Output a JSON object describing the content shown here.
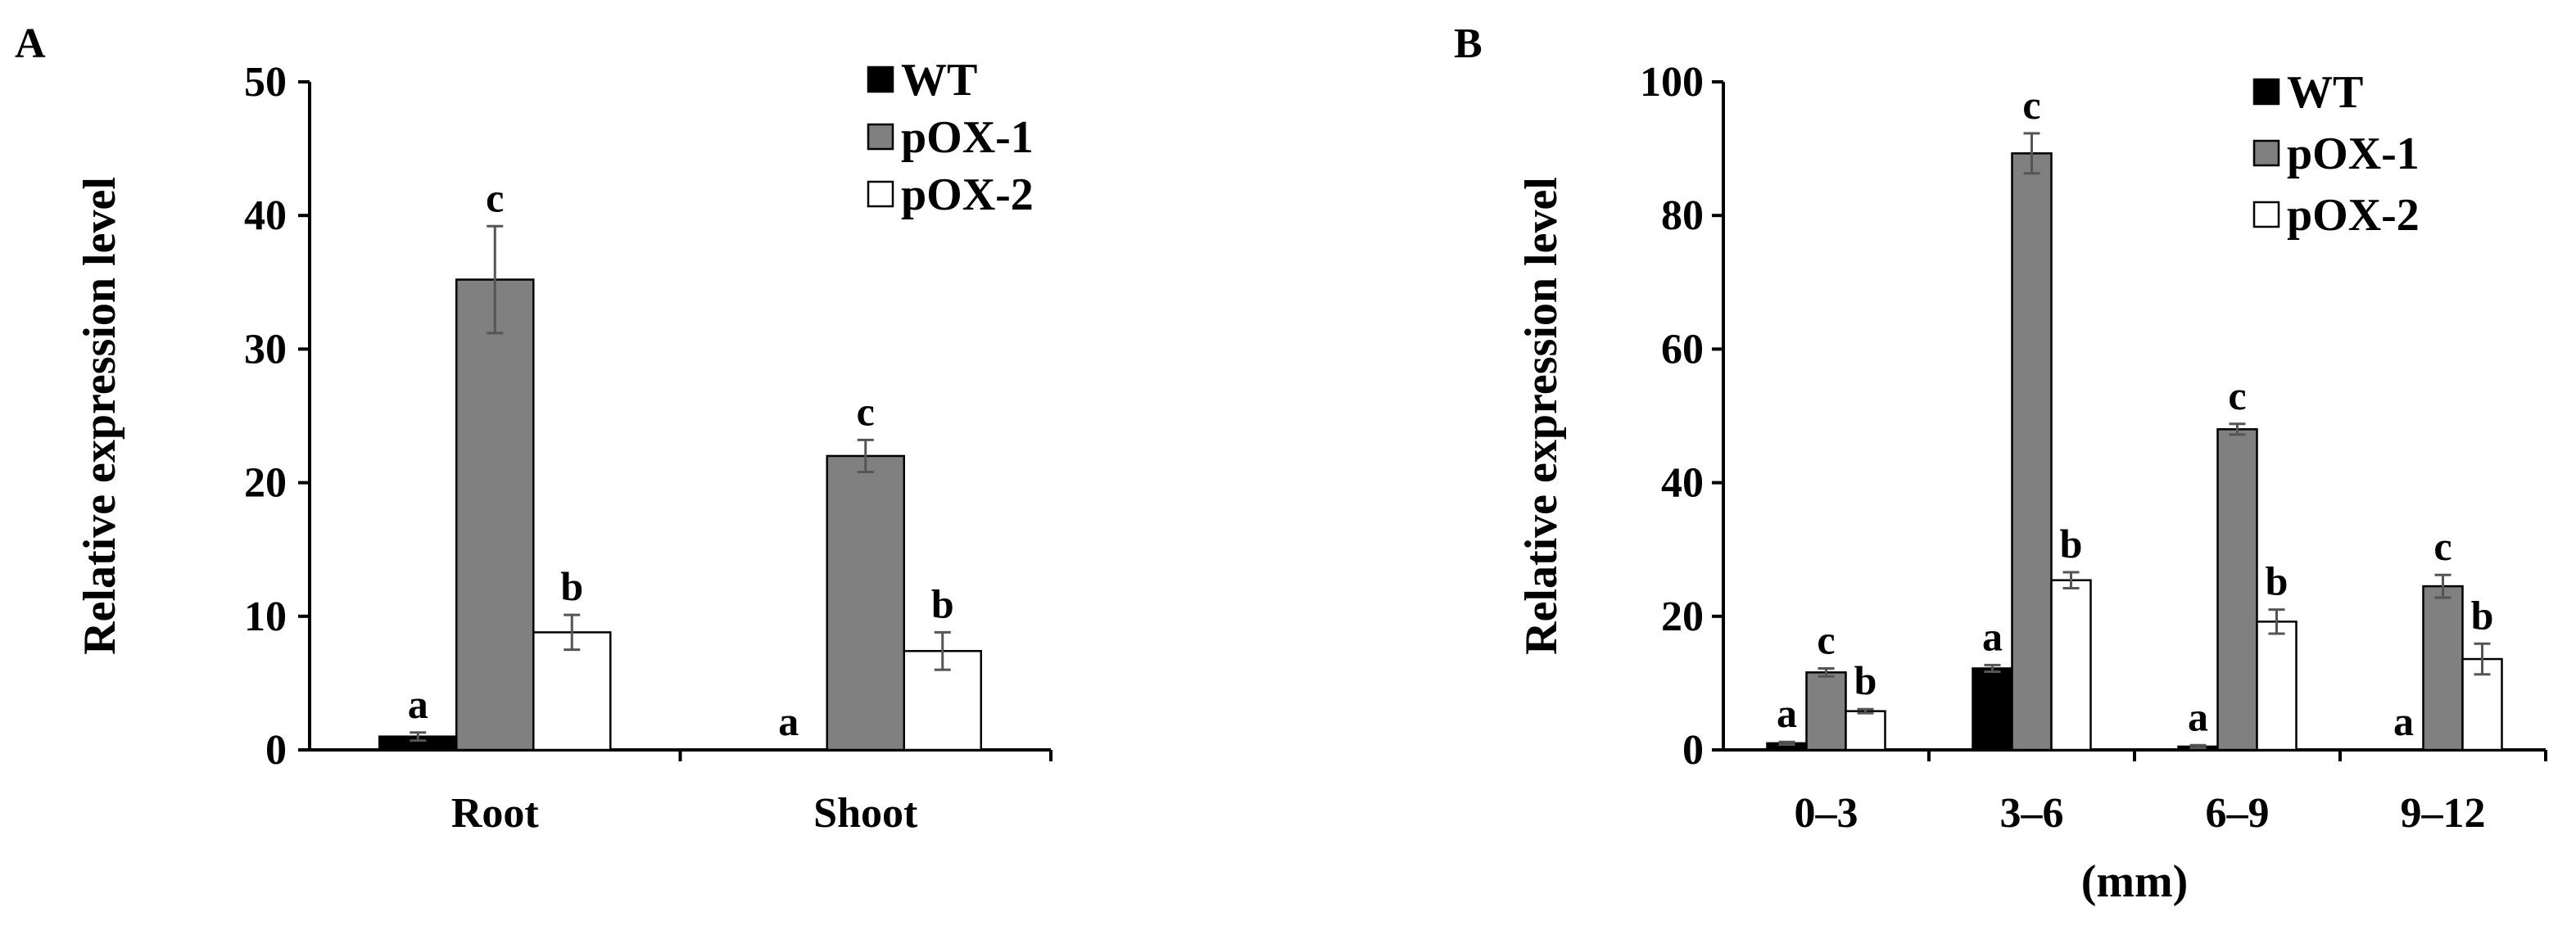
{
  "colors": {
    "WT": "#000000",
    "pOX-1": "#808080",
    "pOX-2": "#ffffff",
    "axis": "#000000",
    "error_bar": "#555555"
  },
  "chart_data": [
    {
      "panel": "A",
      "type": "bar",
      "ylabel": "Relative expression level",
      "xlabel": "",
      "ylim": [
        0,
        50
      ],
      "yticks": [
        0,
        10,
        20,
        30,
        40,
        50
      ],
      "categories": [
        "Root",
        "Shoot"
      ],
      "legend_position": "top-right",
      "series": [
        {
          "name": "WT",
          "values": [
            1.0,
            0.0
          ],
          "errors": [
            0.3,
            0.0
          ],
          "letters": [
            "a",
            "a"
          ]
        },
        {
          "name": "pOX-1",
          "values": [
            35.2,
            22.0
          ],
          "errors": [
            4.0,
            1.2
          ],
          "letters": [
            "c",
            "c"
          ]
        },
        {
          "name": "pOX-2",
          "values": [
            8.8,
            7.4
          ],
          "errors": [
            1.3,
            1.4
          ],
          "letters": [
            "b",
            "b"
          ]
        }
      ]
    },
    {
      "panel": "B",
      "type": "bar",
      "ylabel": "Relative expression level",
      "xlabel": "(mm)",
      "ylim": [
        0,
        100
      ],
      "yticks": [
        0,
        20,
        40,
        60,
        80,
        100
      ],
      "categories": [
        "0–3",
        "3–6",
        "6–9",
        "9–12"
      ],
      "legend_position": "top-center",
      "series": [
        {
          "name": "WT",
          "values": [
            1.0,
            12.2,
            0.5,
            0.0
          ],
          "errors": [
            0.2,
            0.5,
            0.2,
            0.0
          ],
          "letters": [
            "a",
            "a",
            "a",
            "a"
          ]
        },
        {
          "name": "pOX-1",
          "values": [
            11.6,
            89.3,
            48.0,
            24.5
          ],
          "errors": [
            0.6,
            3.0,
            0.8,
            1.7
          ],
          "letters": [
            "c",
            "c",
            "c",
            "c"
          ]
        },
        {
          "name": "pOX-2",
          "values": [
            5.8,
            25.4,
            19.2,
            13.6
          ],
          "errors": [
            0.3,
            1.2,
            1.8,
            2.3
          ],
          "letters": [
            "b",
            "b",
            "b",
            "b"
          ]
        }
      ]
    }
  ]
}
